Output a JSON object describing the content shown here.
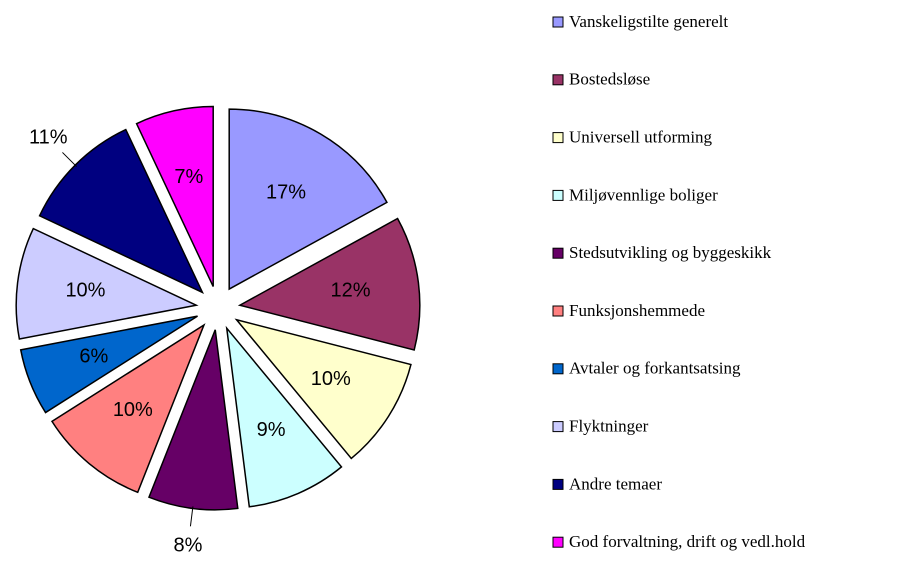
{
  "chart_data": {
    "type": "pie",
    "categories": [
      "Vanskeligstilte generelt",
      "Bostedsløse",
      "Universell utforming",
      "Miljøvennlige boliger",
      "Stedsutvikling og byggeskikk",
      "Funksjonshemmede",
      "Avtaler og forkantsatsing",
      "Flyktninger",
      "Andre temaer",
      "God forvaltning, drift og vedl.hold"
    ],
    "values": [
      17,
      12,
      10,
      9,
      8,
      10,
      6,
      10,
      11,
      7
    ],
    "value_labels": [
      "17%",
      "12%",
      "10%",
      "9%",
      "8%",
      "10%",
      "6%",
      "10%",
      "11%",
      "7%"
    ],
    "colors": [
      "#9999ff",
      "#993366",
      "#ffffcc",
      "#ccffff",
      "#660066",
      "#ff8080",
      "#0066cc",
      "#ccccff",
      "#000080",
      "#ff00ff"
    ],
    "legend": "right"
  }
}
